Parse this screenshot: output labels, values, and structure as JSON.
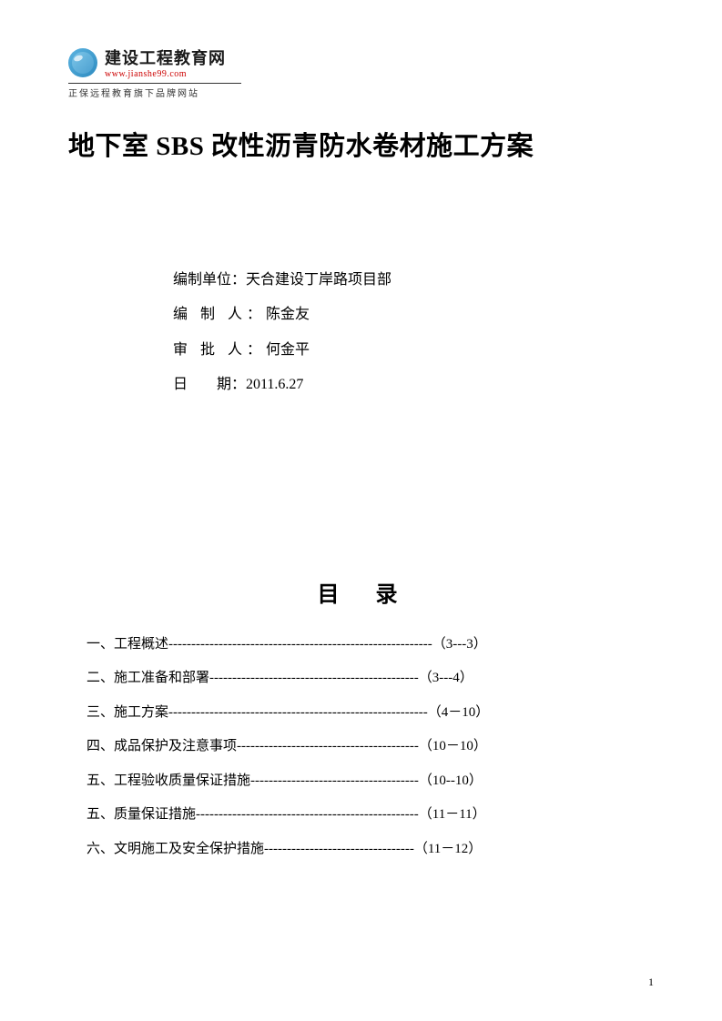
{
  "header": {
    "logo_title": "建设工程教育网",
    "logo_url": "www.jianshe99.com",
    "logo_subtitle": "正保远程教育旗下品牌网站"
  },
  "title": "地下室 SBS 改性沥青防水卷材施工方案",
  "info": {
    "org_label": "编制单位：",
    "org_value": "天合建设丁岸路项目部",
    "author_label": "编 制 人：",
    "author_value": "陈金友",
    "approver_label": "审 批 人：",
    "approver_value": "何金平",
    "date_label": "日　　期：",
    "date_value": "2011.6.27"
  },
  "toc": {
    "title": "目　录",
    "items": [
      {
        "label": "一、工程概述",
        "dashes": "----------------------------------------------------------",
        "page": "（3---3）"
      },
      {
        "label": "二、施工准备和部署",
        "dashes": "----------------------------------------------",
        "page": "  （3---4）"
      },
      {
        "label": "三、施工方案",
        "dashes": "---------------------------------------------------------",
        "page": "（4－10）"
      },
      {
        "label": "四、成品保护及注意事项",
        "dashes": "----------------------------------------",
        "page": "（10－10）"
      },
      {
        "label": "五、工程验收质量保证措施",
        "dashes": "-------------------------------------",
        "page": "（10--10）"
      },
      {
        "label": "五、质量保证措施",
        "dashes": "-------------------------------------------------",
        "page": "（11－11）"
      },
      {
        "label": "六、文明施工及安全保护措施",
        "dashes": "---------------------------------",
        "page": "（11－12）"
      }
    ]
  },
  "page_number": "1"
}
